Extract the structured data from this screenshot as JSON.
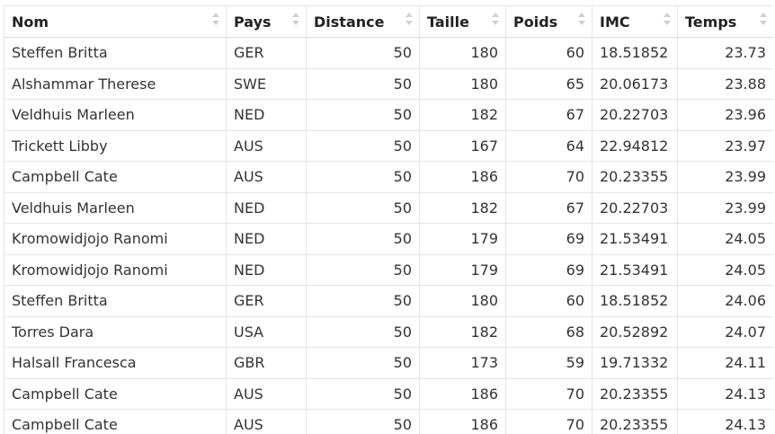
{
  "table": {
    "columns": [
      {
        "key": "nom",
        "label": "Nom",
        "align": "left"
      },
      {
        "key": "pays",
        "label": "Pays",
        "align": "left"
      },
      {
        "key": "distance",
        "label": "Distance",
        "align": "right"
      },
      {
        "key": "taille",
        "label": "Taille",
        "align": "right"
      },
      {
        "key": "poids",
        "label": "Poids",
        "align": "right"
      },
      {
        "key": "imc",
        "label": "IMC",
        "align": "left"
      },
      {
        "key": "temps",
        "label": "Temps",
        "align": "right"
      }
    ],
    "rows": [
      {
        "nom": "Steffen Britta",
        "pays": "GER",
        "distance": "50",
        "taille": "180",
        "poids": "60",
        "imc": "18.51852",
        "temps": "23.73"
      },
      {
        "nom": "Alshammar Therese",
        "pays": "SWE",
        "distance": "50",
        "taille": "180",
        "poids": "65",
        "imc": "20.06173",
        "temps": "23.88"
      },
      {
        "nom": "Veldhuis Marleen",
        "pays": "NED",
        "distance": "50",
        "taille": "182",
        "poids": "67",
        "imc": "20.22703",
        "temps": "23.96"
      },
      {
        "nom": "Trickett Libby",
        "pays": "AUS",
        "distance": "50",
        "taille": "167",
        "poids": "64",
        "imc": "22.94812",
        "temps": "23.97"
      },
      {
        "nom": "Campbell Cate",
        "pays": "AUS",
        "distance": "50",
        "taille": "186",
        "poids": "70",
        "imc": "20.23355",
        "temps": "23.99"
      },
      {
        "nom": "Veldhuis Marleen",
        "pays": "NED",
        "distance": "50",
        "taille": "182",
        "poids": "67",
        "imc": "20.22703",
        "temps": "23.99"
      },
      {
        "nom": "Kromowidjojo Ranomi",
        "pays": "NED",
        "distance": "50",
        "taille": "179",
        "poids": "69",
        "imc": "21.53491",
        "temps": "24.05"
      },
      {
        "nom": "Kromowidjojo Ranomi",
        "pays": "NED",
        "distance": "50",
        "taille": "179",
        "poids": "69",
        "imc": "21.53491",
        "temps": "24.05"
      },
      {
        "nom": "Steffen Britta",
        "pays": "GER",
        "distance": "50",
        "taille": "180",
        "poids": "60",
        "imc": "18.51852",
        "temps": "24.06"
      },
      {
        "nom": "Torres Dara",
        "pays": "USA",
        "distance": "50",
        "taille": "182",
        "poids": "68",
        "imc": "20.52892",
        "temps": "24.07"
      },
      {
        "nom": "Halsall Francesca",
        "pays": "GBR",
        "distance": "50",
        "taille": "173",
        "poids": "59",
        "imc": "19.71332",
        "temps": "24.11"
      },
      {
        "nom": "Campbell Cate",
        "pays": "AUS",
        "distance": "50",
        "taille": "186",
        "poids": "70",
        "imc": "20.23355",
        "temps": "24.13"
      },
      {
        "nom": "Campbell Cate",
        "pays": "AUS",
        "distance": "50",
        "taille": "186",
        "poids": "70",
        "imc": "20.23355",
        "temps": "24.13"
      }
    ]
  },
  "icons": {
    "sort": "sort-icon"
  },
  "colors": {
    "border": "#e4e4e4",
    "sort_arrow": "#d0d0d0",
    "text": "#333333"
  }
}
